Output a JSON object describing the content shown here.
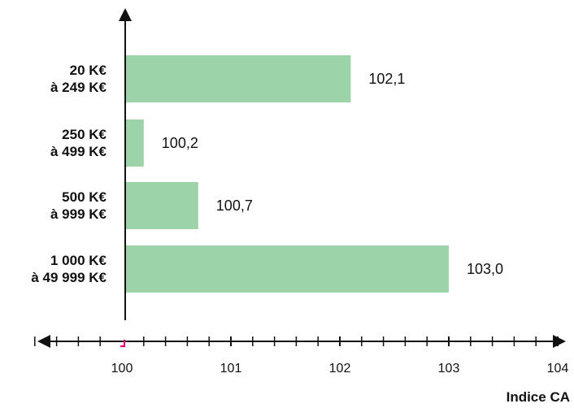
{
  "chart_data": {
    "type": "bar",
    "orientation": "horizontal",
    "categories": [
      [
        "20 K€",
        "à 249 K€"
      ],
      [
        "250 K€",
        "à 499 K€"
      ],
      [
        "500 K€",
        "à 999 K€"
      ],
      [
        "1 000 K€",
        "à 49 999 K€"
      ]
    ],
    "values": [
      102.1,
      100.2,
      100.7,
      103.0
    ],
    "value_labels": [
      "102,1",
      "100,2",
      "100,7",
      "103,0"
    ],
    "xlabel": "Indice CA",
    "xlim": [
      100,
      104
    ],
    "xticks": [
      100,
      101,
      102,
      103,
      104
    ],
    "xtick_labels": [
      "100",
      "101",
      "102",
      "103",
      "104"
    ],
    "colors": {
      "bar": "#9dd3a8",
      "axis": "#111111",
      "origin_marker": "#e6007e"
    },
    "grid": false,
    "legend": "none"
  }
}
